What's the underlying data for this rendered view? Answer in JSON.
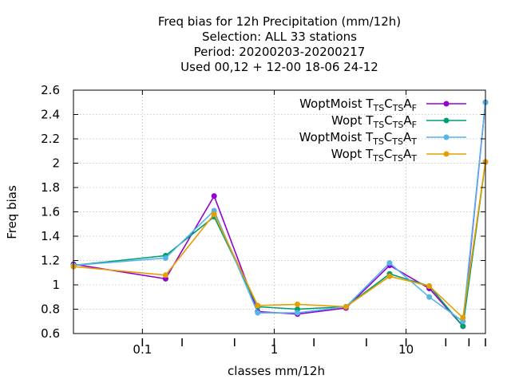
{
  "chart_data": {
    "type": "line",
    "title_lines": [
      "Freq bias  for 12h Precipitation (mm/12h)",
      "Selection: ALL     33 stations",
      "Period: 20200203-20200217",
      "Used  00,12  + 12-00 18-06 24-12"
    ],
    "xlabel": "classes mm/12h",
    "ylabel": "Freq bias",
    "x_scale": "log",
    "xlim": [
      0.03,
      40
    ],
    "ylim": [
      0.6,
      2.6
    ],
    "x_ticks": [
      {
        "value": 0.1,
        "label": "0.1"
      },
      {
        "value": 1,
        "label": "1"
      },
      {
        "value": 10,
        "label": "10"
      }
    ],
    "y_ticks": [
      {
        "value": 0.6,
        "label": "0.6"
      },
      {
        "value": 0.8,
        "label": "0.8"
      },
      {
        "value": 1.0,
        "label": "1"
      },
      {
        "value": 1.2,
        "label": "1.2"
      },
      {
        "value": 1.4,
        "label": "1.4"
      },
      {
        "value": 1.6,
        "label": "1.6"
      },
      {
        "value": 1.8,
        "label": "1.8"
      },
      {
        "value": 2.0,
        "label": "2"
      },
      {
        "value": 2.2,
        "label": "2.2"
      },
      {
        "value": 2.4,
        "label": "2.4"
      },
      {
        "value": 2.6,
        "label": "2.6"
      }
    ],
    "class_marks": [
      0.1,
      0.2,
      0.5,
      1,
      2,
      5,
      10,
      20,
      30,
      40
    ],
    "grid": true,
    "legend_position": "top-right",
    "x": [
      0.03,
      0.15,
      0.35,
      0.75,
      1.5,
      3.5,
      7.5,
      15,
      27,
      40
    ],
    "series": [
      {
        "name": "WoptMoist",
        "subs": [
          "TS",
          "TS",
          "F"
        ],
        "color": "#9400d3",
        "marker": "circle",
        "values": [
          1.17,
          1.05,
          1.73,
          0.78,
          0.76,
          0.81,
          1.16,
          0.97,
          0.66,
          2.5
        ]
      },
      {
        "name": "Wopt",
        "subs": [
          "TS",
          "TS",
          "F"
        ],
        "color": "#009e73",
        "marker": "circle",
        "values": [
          1.16,
          1.24,
          1.56,
          0.82,
          0.8,
          0.82,
          1.09,
          0.99,
          0.66,
          2.01
        ]
      },
      {
        "name": "WoptMoist",
        "subs": [
          "TS",
          "TS",
          "T"
        ],
        "color": "#56b4e9",
        "marker": "circle",
        "values": [
          1.16,
          1.22,
          1.61,
          0.77,
          0.77,
          0.82,
          1.18,
          0.9,
          0.7,
          2.5
        ]
      },
      {
        "name": "Wopt",
        "subs": [
          "TS",
          "TS",
          "T"
        ],
        "color": "#e69f00",
        "marker": "circle",
        "values": [
          1.15,
          1.08,
          1.58,
          0.83,
          0.84,
          0.82,
          1.07,
          0.99,
          0.73,
          2.01
        ]
      }
    ]
  }
}
